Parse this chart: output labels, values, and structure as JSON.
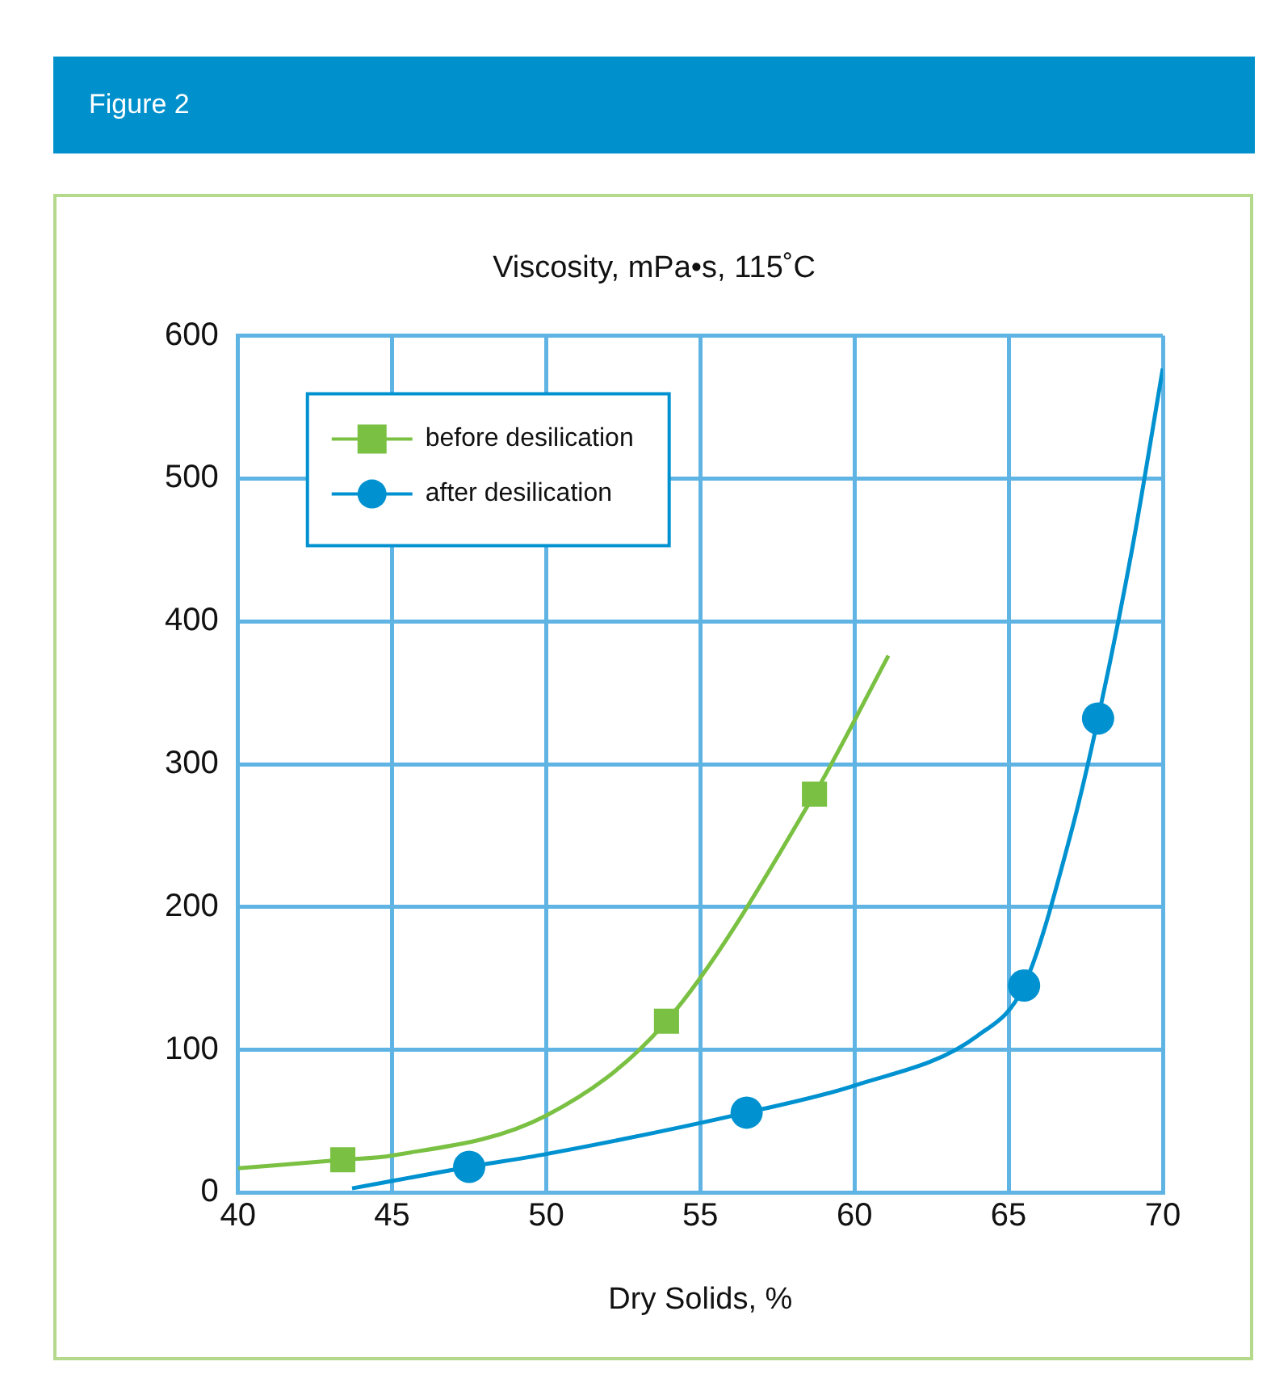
{
  "chart_data": {
    "type": "line",
    "title": "Figure 2",
    "ylabel": "Viscosity, mPa•s, 115˚C",
    "xlabel": "Dry Solids, %",
    "xlim": [
      40,
      70
    ],
    "xticks": [
      40,
      45,
      50,
      55,
      60,
      65,
      70
    ],
    "ylim": [
      0,
      600
    ],
    "yticks": [
      0,
      100,
      200,
      300,
      400,
      500,
      600
    ],
    "grid": true,
    "legend": "top left",
    "series": [
      {
        "type": "line",
        "color": "#7ac143",
        "marker": "none",
        "x": [
          40,
          43.4,
          45,
          50,
          53.9,
          58.7,
          61.1
        ],
        "values": [
          17,
          23,
          26,
          54,
          120,
          279,
          376
        ]
      },
      {
        "type": "line",
        "color": "#0092d0",
        "marker": "none",
        "x": [
          43.7,
          47.5,
          50,
          56.5,
          60,
          64,
          65.5,
          67,
          67.9,
          69,
          70
        ],
        "values": [
          3,
          18,
          27,
          56,
          75,
          110,
          145,
          250,
          332,
          450,
          577
        ]
      },
      {
        "type": "scatter",
        "name": "before desilication",
        "color": "#7ac143",
        "marker": "square",
        "x": [
          43.4,
          53.9,
          58.7
        ],
        "values": [
          23,
          120,
          279
        ]
      },
      {
        "type": "scatter",
        "name": "after desilication",
        "color": "#0092d0",
        "marker": "circle",
        "x": [
          47.5,
          56.5,
          65.5,
          67.9
        ],
        "values": [
          18,
          56,
          145,
          332
        ]
      }
    ]
  }
}
